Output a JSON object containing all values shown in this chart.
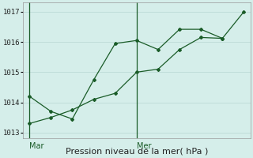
{
  "xlabel": "Pression niveau de la mer( hPa )",
  "background_color": "#d5eeea",
  "grid_color": "#c0ddd9",
  "line_color": "#1a5c28",
  "ylim": [
    1012.8,
    1017.3
  ],
  "yticks": [
    1013,
    1014,
    1015,
    1016,
    1017
  ],
  "series1_x": [
    0,
    1,
    2,
    3,
    4,
    5,
    6,
    7,
    8,
    9
  ],
  "series1_y": [
    1014.2,
    1013.7,
    1013.45,
    1014.75,
    1015.95,
    1016.05,
    1015.75,
    1016.42,
    1016.42,
    1016.12
  ],
  "series2_x": [
    0,
    1,
    2,
    3,
    4,
    5,
    6,
    7,
    8,
    9,
    10
  ],
  "series2_y": [
    1013.3,
    1013.5,
    1013.75,
    1014.1,
    1014.3,
    1015.0,
    1015.1,
    1015.75,
    1016.15,
    1016.12,
    1017.0
  ],
  "vline1_x": 0,
  "vline2_x": 5,
  "label_mar": "Mar",
  "label_mer": "Mer",
  "xlim": [
    -0.3,
    10.3
  ]
}
